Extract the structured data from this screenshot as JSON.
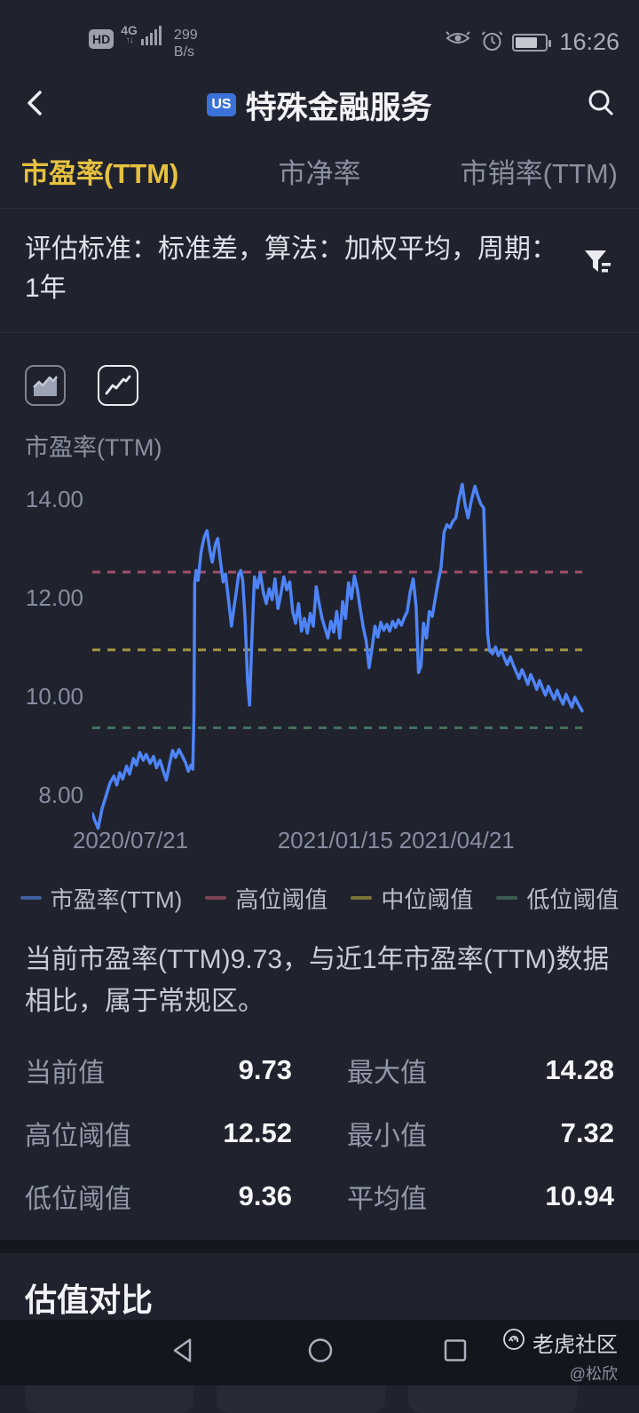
{
  "status_bar": {
    "hd": "HD",
    "network": "4G",
    "speed_value": "299",
    "speed_unit": "B/s",
    "time": "16:26"
  },
  "header": {
    "badge": "US",
    "title": "特殊金融服务"
  },
  "tabs": [
    {
      "label": "市盈率(TTM)",
      "active": true
    },
    {
      "label": "市净率",
      "active": false
    },
    {
      "label": "市销率(TTM)",
      "active": false
    }
  ],
  "filter": {
    "text": "评估标准：标准差，算法：加权平均，周期：1年"
  },
  "chart_header": {
    "label": "市盈率(TTM)"
  },
  "chart_data": {
    "type": "line",
    "title": "市盈率(TTM)",
    "ylabel": "市盈率(TTM)",
    "ylim": [
      7.206,
      14.594
    ],
    "y_ticks": [
      "14.00",
      "12.00",
      "10.00",
      "8.00"
    ],
    "y_tick_values": [
      14,
      12,
      10,
      8
    ],
    "x_ticks": [
      "2020/07/21",
      "2021/01/15",
      "2021/04/21"
    ],
    "x_tick_t": [
      0.078,
      0.496,
      0.744
    ],
    "grid": false,
    "legend_position": "bottom",
    "thresholds": {
      "high": 12.52,
      "mid": 10.94,
      "low": 9.36
    },
    "stats": {
      "current": 9.73,
      "max": 14.28,
      "min": 7.32,
      "avg": 10.94
    },
    "line_color": "#4e84f7",
    "high_color": "#a14e6b",
    "mid_color": "#a39540",
    "low_color": "#43705f",
    "series": [
      {
        "name": "市盈率(TTM)",
        "points": [
          [
            0,
            7.62
          ],
          [
            0.005,
            7.48
          ],
          [
            0.012,
            7.32
          ],
          [
            0.02,
            7.72
          ],
          [
            0.028,
            7.98
          ],
          [
            0.036,
            8.24
          ],
          [
            0.044,
            8.38
          ],
          [
            0.05,
            8.2
          ],
          [
            0.056,
            8.45
          ],
          [
            0.062,
            8.32
          ],
          [
            0.07,
            8.58
          ],
          [
            0.076,
            8.42
          ],
          [
            0.084,
            8.74
          ],
          [
            0.09,
            8.6
          ],
          [
            0.097,
            8.86
          ],
          [
            0.104,
            8.7
          ],
          [
            0.11,
            8.82
          ],
          [
            0.118,
            8.64
          ],
          [
            0.125,
            8.78
          ],
          [
            0.131,
            8.55
          ],
          [
            0.138,
            8.7
          ],
          [
            0.145,
            8.48
          ],
          [
            0.151,
            8.3
          ],
          [
            0.158,
            8.64
          ],
          [
            0.164,
            8.9
          ],
          [
            0.17,
            8.76
          ],
          [
            0.177,
            8.92
          ],
          [
            0.183,
            8.8
          ],
          [
            0.19,
            8.66
          ],
          [
            0.196,
            8.48
          ],
          [
            0.201,
            8.6
          ],
          [
            0.205,
            8.52
          ],
          [
            0.2075,
            9.6
          ],
          [
            0.209,
            12.3
          ],
          [
            0.212,
            12.55
          ],
          [
            0.216,
            12.35
          ],
          [
            0.222,
            12.92
          ],
          [
            0.228,
            13.22
          ],
          [
            0.234,
            13.36
          ],
          [
            0.24,
            12.95
          ],
          [
            0.245,
            12.72
          ],
          [
            0.251,
            13.08
          ],
          [
            0.256,
            13.2
          ],
          [
            0.261,
            12.78
          ],
          [
            0.267,
            12.32
          ],
          [
            0.272,
            12.48
          ],
          [
            0.278,
            11.95
          ],
          [
            0.284,
            11.42
          ],
          [
            0.289,
            11.78
          ],
          [
            0.294,
            12.12
          ],
          [
            0.299,
            12.48
          ],
          [
            0.303,
            12.55
          ],
          [
            0.307,
            12.35
          ],
          [
            0.312,
            11.55
          ],
          [
            0.317,
            10.3
          ],
          [
            0.321,
            9.82
          ],
          [
            0.326,
            11.25
          ],
          [
            0.331,
            12.42
          ],
          [
            0.337,
            12.2
          ],
          [
            0.343,
            12.5
          ],
          [
            0.349,
            12.12
          ],
          [
            0.355,
            11.88
          ],
          [
            0.361,
            12.18
          ],
          [
            0.367,
            11.96
          ],
          [
            0.373,
            12.38
          ],
          [
            0.379,
            11.78
          ],
          [
            0.385,
            12.08
          ],
          [
            0.391,
            12.42
          ],
          [
            0.397,
            12.16
          ],
          [
            0.403,
            12.32
          ],
          [
            0.409,
            11.72
          ],
          [
            0.415,
            11.48
          ],
          [
            0.421,
            11.88
          ],
          [
            0.427,
            11.32
          ],
          [
            0.433,
            11.58
          ],
          [
            0.439,
            11.28
          ],
          [
            0.445,
            11.68
          ],
          [
            0.451,
            11.42
          ],
          [
            0.457,
            12.22
          ],
          [
            0.463,
            11.88
          ],
          [
            0.469,
            11.58
          ],
          [
            0.475,
            11.38
          ],
          [
            0.481,
            11.18
          ],
          [
            0.487,
            11.52
          ],
          [
            0.493,
            11.3
          ],
          [
            0.499,
            11.72
          ],
          [
            0.505,
            11.18
          ],
          [
            0.511,
            11.92
          ],
          [
            0.517,
            11.58
          ],
          [
            0.523,
            12.3
          ],
          [
            0.529,
            11.98
          ],
          [
            0.535,
            12.44
          ],
          [
            0.541,
            12.18
          ],
          [
            0.547,
            11.78
          ],
          [
            0.553,
            11.4
          ],
          [
            0.559,
            11.12
          ],
          [
            0.565,
            10.58
          ],
          [
            0.571,
            10.98
          ],
          [
            0.577,
            11.42
          ],
          [
            0.583,
            11.2
          ],
          [
            0.589,
            11.5
          ],
          [
            0.595,
            11.34
          ],
          [
            0.601,
            11.46
          ],
          [
            0.607,
            11.32
          ],
          [
            0.613,
            11.52
          ],
          [
            0.619,
            11.4
          ],
          [
            0.625,
            11.55
          ],
          [
            0.631,
            11.44
          ],
          [
            0.637,
            11.6
          ],
          [
            0.643,
            11.72
          ],
          [
            0.649,
            12.12
          ],
          [
            0.655,
            12.38
          ],
          [
            0.661,
            11.82
          ],
          [
            0.666,
            10.48
          ],
          [
            0.671,
            10.62
          ],
          [
            0.676,
            11.48
          ],
          [
            0.682,
            11.18
          ],
          [
            0.688,
            11.72
          ],
          [
            0.694,
            11.62
          ],
          [
            0.7,
            11.98
          ],
          [
            0.706,
            12.32
          ],
          [
            0.712,
            12.62
          ],
          [
            0.718,
            13.32
          ],
          [
            0.724,
            13.48
          ],
          [
            0.73,
            13.42
          ],
          [
            0.736,
            13.55
          ],
          [
            0.742,
            13.62
          ],
          [
            0.748,
            13.98
          ],
          [
            0.755,
            14.3
          ],
          [
            0.761,
            13.88
          ],
          [
            0.767,
            13.62
          ],
          [
            0.774,
            13.98
          ],
          [
            0.781,
            14.26
          ],
          [
            0.787,
            14.06
          ],
          [
            0.793,
            13.9
          ],
          [
            0.799,
            13.82
          ],
          [
            0.803,
            12.45
          ],
          [
            0.807,
            11.25
          ],
          [
            0.811,
            10.92
          ],
          [
            0.817,
            10.86
          ],
          [
            0.823,
            11.0
          ],
          [
            0.829,
            10.82
          ],
          [
            0.835,
            10.94
          ],
          [
            0.841,
            10.78
          ],
          [
            0.847,
            10.64
          ],
          [
            0.853,
            10.8
          ],
          [
            0.859,
            10.64
          ],
          [
            0.865,
            10.5
          ],
          [
            0.871,
            10.36
          ],
          [
            0.877,
            10.54
          ],
          [
            0.883,
            10.4
          ],
          [
            0.889,
            10.24
          ],
          [
            0.895,
            10.44
          ],
          [
            0.901,
            10.3
          ],
          [
            0.907,
            10.14
          ],
          [
            0.913,
            10.32
          ],
          [
            0.919,
            10.16
          ],
          [
            0.925,
            10.02
          ],
          [
            0.931,
            10.2
          ],
          [
            0.937,
            10.06
          ],
          [
            0.943,
            9.94
          ],
          [
            0.949,
            10.12
          ],
          [
            0.955,
            9.96
          ],
          [
            0.961,
            9.84
          ],
          [
            0.967,
            10.04
          ],
          [
            0.973,
            9.9
          ],
          [
            0.979,
            9.78
          ],
          [
            0.985,
            9.98
          ],
          [
            0.991,
            9.86
          ],
          [
            1,
            9.7
          ]
        ]
      }
    ]
  },
  "legend": [
    {
      "label": "市盈率(TTM)",
      "color": "#3f5f9e"
    },
    {
      "label": "高位阈值",
      "color": "#7c4457"
    },
    {
      "label": "中位阈值",
      "color": "#7d7337"
    },
    {
      "label": "低位阈值",
      "color": "#3c5c50"
    }
  ],
  "summary": {
    "text": "当前市盈率(TTM)9.73，与近1年市盈率(TTM)数据相比，属于常规区。"
  },
  "stats": {
    "rows": [
      [
        {
          "label": "当前值",
          "value": "9.73"
        },
        {
          "label": "最大值",
          "value": "14.28"
        }
      ],
      [
        {
          "label": "高位阈值",
          "value": "12.52"
        },
        {
          "label": "最小值",
          "value": "7.32"
        }
      ],
      [
        {
          "label": "低位阈值",
          "value": "9.36"
        },
        {
          "label": "平均值",
          "value": "10.94"
        }
      ]
    ]
  },
  "section": {
    "title": "估值对比"
  },
  "watermark": {
    "brand": "老虎社区",
    "user": "@松欣"
  },
  "colors": {
    "accent_yellow": "#e6c140",
    "line_blue": "#4e84f7",
    "badge_blue": "#3b72d8",
    "bg_main": "#20232d",
    "bg_nav": "#14161d"
  }
}
